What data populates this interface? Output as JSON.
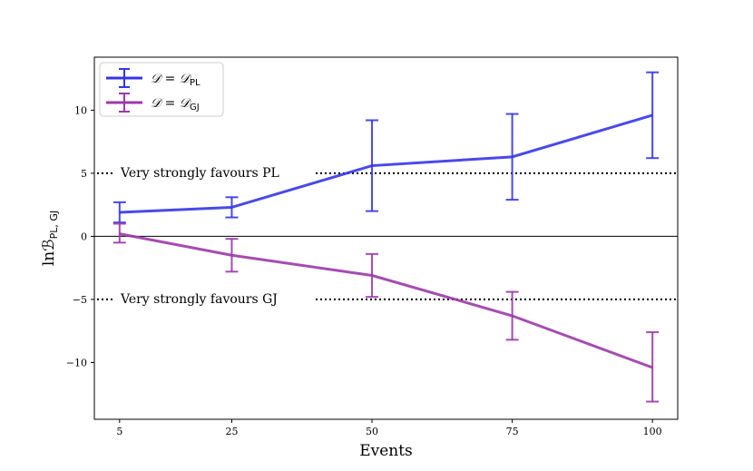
{
  "chart_data": {
    "type": "line",
    "x": [
      5,
      25,
      50,
      75,
      100
    ],
    "xticks": [
      "5",
      "25",
      "50",
      "75",
      "100"
    ],
    "ylim": [
      -14.5,
      14.2
    ],
    "yticks": [
      -10,
      -5,
      0,
      5,
      10
    ],
    "ytick_labels": [
      "−10",
      "−5",
      "0",
      "5",
      "10"
    ],
    "xlabel": "Events",
    "ylabel": "lnℬ",
    "ylabel_sub": "PL, GJ",
    "series": [
      {
        "name": "𝒟 = 𝒟",
        "name_sub": "PL",
        "color": "#3535e8",
        "values": [
          1.9,
          2.3,
          5.6,
          6.3,
          9.6
        ],
        "err_low": [
          1.1,
          1.5,
          2.0,
          2.9,
          6.2
        ],
        "err_high": [
          2.7,
          3.1,
          9.2,
          9.7,
          13.0
        ]
      },
      {
        "name": "𝒟 = 𝒟",
        "name_sub": "GJ",
        "color": "#9b38a8",
        "values": [
          0.2,
          -1.5,
          -3.1,
          -6.3,
          -10.4
        ],
        "err_low": [
          -0.5,
          -2.8,
          -4.8,
          -8.2,
          -13.1
        ],
        "err_high": [
          1.0,
          -0.2,
          -1.4,
          -4.4,
          -7.6
        ]
      }
    ],
    "annotations": [
      {
        "text": "Very strongly favours PL",
        "y": 5
      },
      {
        "text": "Very strongly favours GJ",
        "y": -5
      }
    ],
    "hline": 0,
    "legend_position": "top-left"
  }
}
